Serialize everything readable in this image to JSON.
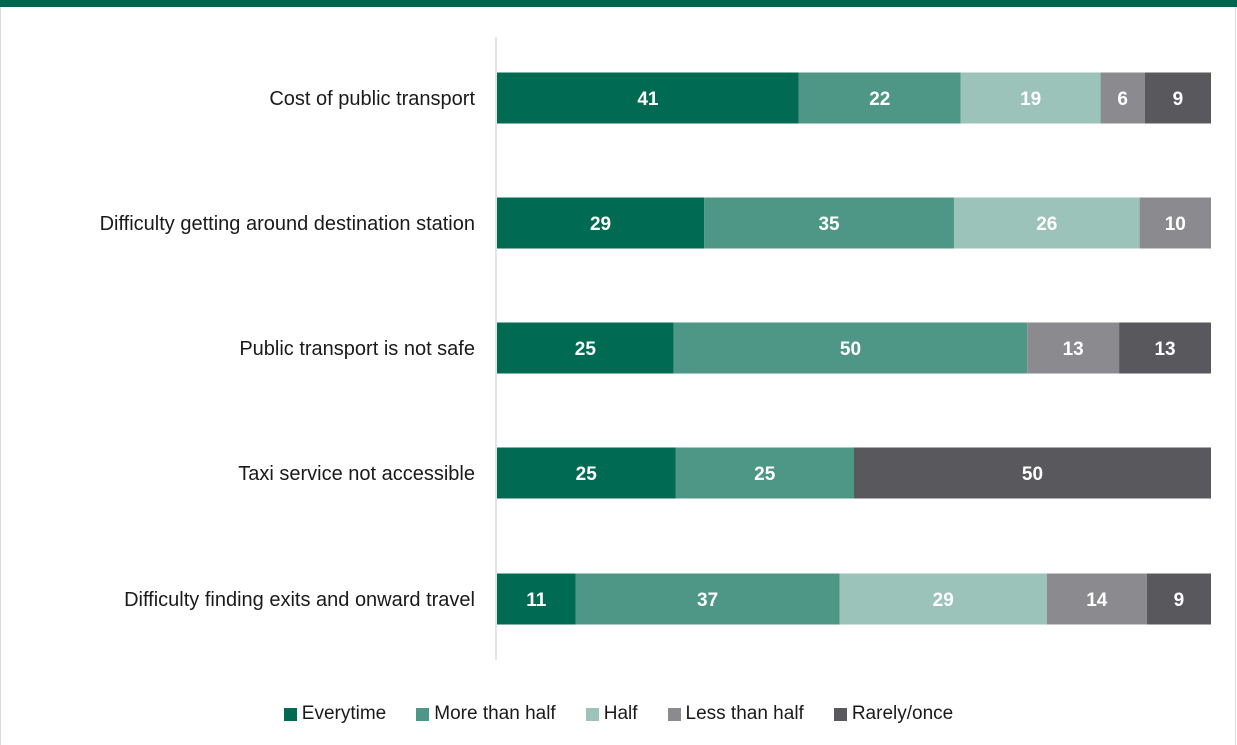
{
  "colors": {
    "accent": "#00664f",
    "Everytime": "#006a53",
    "More than half": "#4e9686",
    "Half": "#9bc3b9",
    "Less than half": "#8b8b8f",
    "Rarely/once": "#58585d"
  },
  "chart_data": {
    "type": "bar",
    "orientation": "horizontal",
    "stacked": true,
    "categories": [
      "Cost of public transport",
      "Difficulty getting around destination station",
      "Public transport is not safe",
      "Taxi service not accessible",
      "Difficulty finding exits and onward travel"
    ],
    "series": [
      {
        "name": "Everytime",
        "values": [
          41,
          29,
          25,
          25,
          11
        ]
      },
      {
        "name": "More than half",
        "values": [
          22,
          35,
          50,
          25,
          37
        ]
      },
      {
        "name": "Half",
        "values": [
          19,
          26,
          0,
          0,
          29
        ]
      },
      {
        "name": "Less than half",
        "values": [
          6,
          10,
          13,
          0,
          14
        ]
      },
      {
        "name": "Rarely/once",
        "values": [
          9,
          0,
          13,
          50,
          9
        ]
      }
    ],
    "legend_position": "bottom",
    "grid": false
  }
}
